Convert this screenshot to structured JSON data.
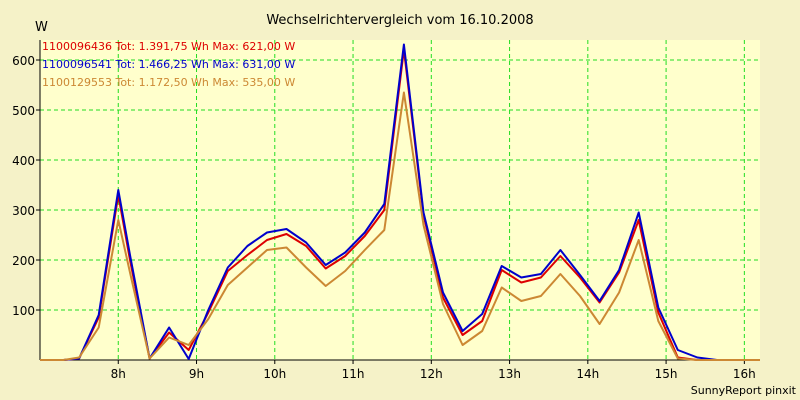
{
  "chart_data": {
    "type": "line",
    "title": "Wechselrichtervergleich vom 16.10.2008",
    "ylabel": "W",
    "xlabel": "",
    "credit": "SunnyReport pinxit",
    "ylim": [
      0,
      640
    ],
    "xlim": [
      7.0,
      16.2
    ],
    "yticks": [
      100,
      200,
      300,
      400,
      500,
      600
    ],
    "xticks": [
      8,
      9,
      10,
      11,
      12,
      13,
      14,
      15,
      16
    ],
    "xtick_labels": [
      "8h",
      "9h",
      "10h",
      "11h",
      "12h",
      "13h",
      "14h",
      "15h",
      "16h"
    ],
    "grid": true,
    "colors": {
      "background": "#f5f2c8",
      "plot_background": "#ffffcc",
      "grid": "#22dd22"
    },
    "x": [
      7.0,
      7.3,
      7.5,
      7.75,
      8.0,
      8.15,
      8.4,
      8.65,
      8.9,
      9.15,
      9.4,
      9.65,
      9.9,
      10.15,
      10.4,
      10.65,
      10.9,
      11.15,
      11.4,
      11.65,
      11.9,
      12.15,
      12.4,
      12.65,
      12.9,
      13.15,
      13.4,
      13.65,
      13.9,
      14.15,
      14.4,
      14.65,
      14.9,
      15.15,
      15.4,
      15.65,
      15.9,
      16.2
    ],
    "series": [
      {
        "name": "1100096436",
        "legend": "1100096436 Tot: 1.391,75 Wh Max: 621,00 W",
        "color": "#dd0000",
        "values": [
          0,
          0,
          3,
          85,
          330,
          200,
          3,
          55,
          20,
          95,
          178,
          210,
          240,
          252,
          228,
          183,
          208,
          248,
          300,
          621,
          290,
          125,
          50,
          78,
          180,
          155,
          165,
          208,
          165,
          115,
          175,
          280,
          95,
          5,
          0,
          0,
          0,
          0
        ]
      },
      {
        "name": "1100096541",
        "legend": "1100096541 Tot: 1.466,25 Wh Max: 631,00 W",
        "color": "#0000cc",
        "values": [
          0,
          0,
          3,
          90,
          340,
          210,
          3,
          65,
          2,
          100,
          185,
          228,
          255,
          262,
          235,
          190,
          215,
          255,
          312,
          631,
          295,
          135,
          58,
          92,
          188,
          165,
          172,
          220,
          170,
          118,
          180,
          295,
          105,
          20,
          5,
          0,
          0,
          0
        ]
      },
      {
        "name": "1100129553",
        "legend": "1100129553 Tot: 1.172,50 Wh Max: 535,00 W",
        "color": "#cc8833",
        "values": [
          0,
          0,
          5,
          65,
          280,
          175,
          3,
          45,
          30,
          82,
          150,
          185,
          220,
          225,
          185,
          148,
          178,
          220,
          260,
          535,
          270,
          112,
          30,
          58,
          145,
          118,
          128,
          172,
          128,
          72,
          135,
          240,
          78,
          3,
          0,
          0,
          0,
          0
        ]
      }
    ]
  }
}
